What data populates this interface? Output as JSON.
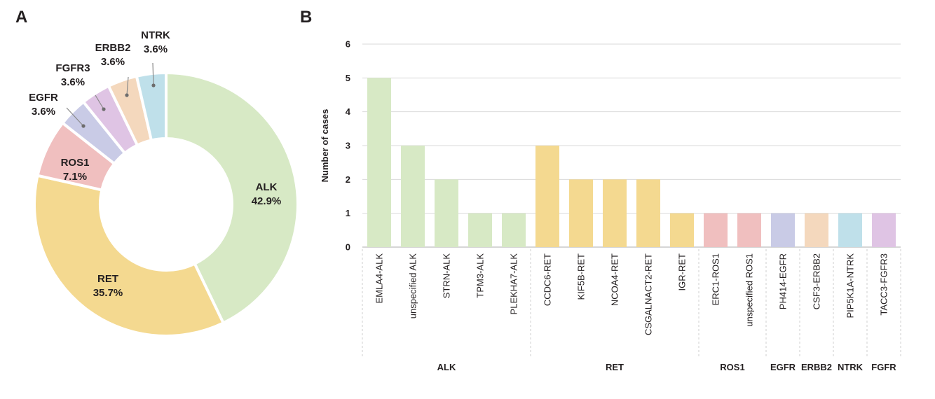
{
  "panels": {
    "a": "A",
    "b": "B"
  },
  "chart_data": [
    {
      "type": "pie",
      "donut": true,
      "slices": [
        {
          "label": "ALK",
          "percent_label": "42.9%",
          "value": 42.9,
          "color": "#d7e9c5"
        },
        {
          "label": "RET",
          "percent_label": "35.7%",
          "value": 35.7,
          "color": "#f4d990"
        },
        {
          "label": "ROS1",
          "percent_label": "7.1%",
          "value": 7.1,
          "color": "#f0bfbf"
        },
        {
          "label": "EGFR",
          "percent_label": "3.6%",
          "value": 3.6,
          "color": "#c9cbe6"
        },
        {
          "label": "FGFR3",
          "percent_label": "3.6%",
          "value": 3.6,
          "color": "#dfc4e4"
        },
        {
          "label": "ERBB2",
          "percent_label": "3.6%",
          "value": 3.6,
          "color": "#f4d8bd"
        },
        {
          "label": "NTRK",
          "percent_label": "3.6%",
          "value": 3.6,
          "color": "#bfe0ea"
        }
      ]
    },
    {
      "type": "bar",
      "ylabel": "Number of cases",
      "ylim": [
        0,
        6
      ],
      "yticks": [
        "0",
        "1",
        "2",
        "3",
        "4",
        "5",
        "6"
      ],
      "grid": true,
      "categories": [
        "EMLA4-ALK",
        "unspecified ALK",
        "STRN-ALK",
        "TPM3-ALK",
        "PLEKHA7-ALK",
        "CCDC6-RET",
        "KIF5B-RET",
        "NCOA4-RET",
        "CSGALNACT2-RET",
        "IGR-RET",
        "ERC1-ROS1",
        "unspecified ROS1",
        "PH414-EGFR",
        "CSF3-ERBB2",
        "PIP5K1A-NTRK",
        "TACC3-FGFR3"
      ],
      "values": [
        5,
        3,
        2,
        1,
        1,
        3,
        2,
        2,
        2,
        1,
        1,
        1,
        1,
        1,
        1,
        1
      ],
      "colors": [
        "#d7e9c5",
        "#d7e9c5",
        "#d7e9c5",
        "#d7e9c5",
        "#d7e9c5",
        "#f4d990",
        "#f4d990",
        "#f4d990",
        "#f4d990",
        "#f4d990",
        "#f0bfbf",
        "#f0bfbf",
        "#c9cbe6",
        "#f4d8bd",
        "#bfe0ea",
        "#dfc4e4"
      ],
      "groups": [
        {
          "label": "ALK",
          "count": 5
        },
        {
          "label": "RET",
          "count": 5
        },
        {
          "label": "ROS1",
          "count": 2
        },
        {
          "label": "EGFR",
          "count": 1
        },
        {
          "label": "ERBB2",
          "count": 1
        },
        {
          "label": "NTRK",
          "count": 1
        },
        {
          "label": "FGFR",
          "count": 1
        }
      ]
    }
  ]
}
